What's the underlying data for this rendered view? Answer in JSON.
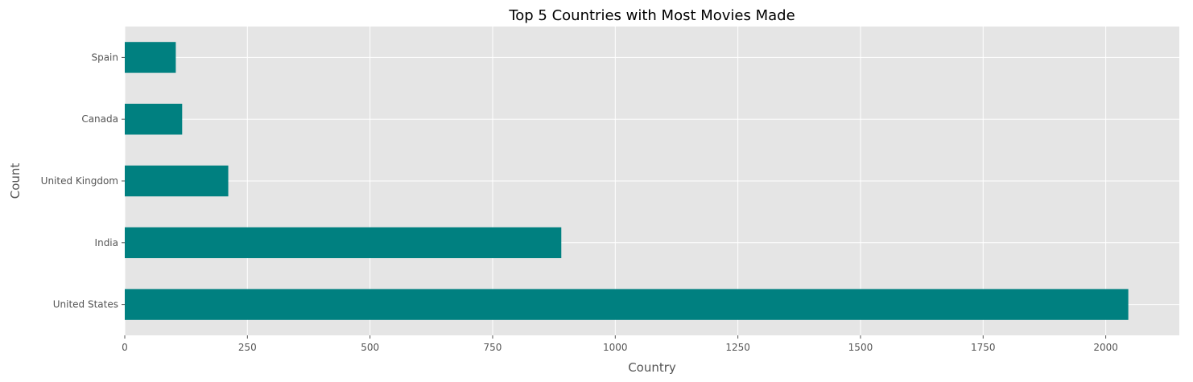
{
  "chart_data": {
    "type": "bar",
    "orientation": "horizontal",
    "title": "Top 5 Countries with Most Movies Made",
    "xlabel": "Country",
    "ylabel": "Count",
    "categories": [
      "United States",
      "India",
      "United Kingdom",
      "Canada",
      "Spain"
    ],
    "values": [
      2046,
      890,
      211,
      117,
      104
    ],
    "xlim": [
      0,
      2150
    ],
    "xticks": [
      0,
      250,
      500,
      750,
      1000,
      1250,
      1500,
      1750,
      2000
    ],
    "grid": true,
    "legend": "none",
    "colors": {
      "bar": "#008080",
      "plot_background": "#e5e5e5",
      "grid": "#ffffff"
    }
  }
}
